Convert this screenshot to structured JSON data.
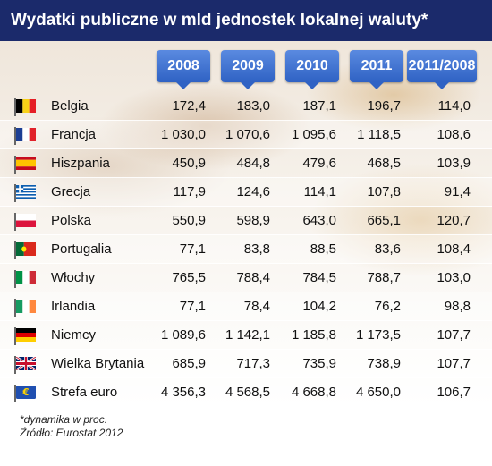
{
  "title": "Wydatki publiczne w mld jednostek lokalnej waluty*",
  "chart_data": {
    "type": "table",
    "title": "Wydatki publiczne w mld jednostek lokalnej waluty*",
    "columns": [
      "2008",
      "2009",
      "2010",
      "2011",
      "2011/2008"
    ],
    "rows": [
      {
        "country": "Belgia",
        "flag": "flag-belgium-icon",
        "values": [
          "172,4",
          "183,0",
          "187,1",
          "196,7",
          "114,0"
        ]
      },
      {
        "country": "Francja",
        "flag": "flag-france-icon",
        "values": [
          "1 030,0",
          "1 070,6",
          "1 095,6",
          "1 118,5",
          "108,6"
        ]
      },
      {
        "country": "Hiszpania",
        "flag": "flag-spain-icon",
        "values": [
          "450,9",
          "484,8",
          "479,6",
          "468,5",
          "103,9"
        ]
      },
      {
        "country": "Grecja",
        "flag": "flag-greece-icon",
        "values": [
          "117,9",
          "124,6",
          "114,1",
          "107,8",
          "91,4"
        ]
      },
      {
        "country": "Polska",
        "flag": "flag-poland-icon",
        "values": [
          "550,9",
          "598,9",
          "643,0",
          "665,1",
          "120,7"
        ]
      },
      {
        "country": "Portugalia",
        "flag": "flag-portugal-icon",
        "values": [
          "77,1",
          "83,8",
          "88,5",
          "83,6",
          "108,4"
        ]
      },
      {
        "country": "Włochy",
        "flag": "flag-italy-icon",
        "values": [
          "765,5",
          "788,4",
          "784,5",
          "788,7",
          "103,0"
        ]
      },
      {
        "country": "Irlandia",
        "flag": "flag-ireland-icon",
        "values": [
          "77,1",
          "78,4",
          "104,2",
          "76,2",
          "98,8"
        ]
      },
      {
        "country": "Niemcy",
        "flag": "flag-germany-icon",
        "values": [
          "1 089,6",
          "1 142,1",
          "1 185,8",
          "1 173,5",
          "107,7"
        ]
      },
      {
        "country": "Wielka Brytania",
        "flag": "flag-uk-icon",
        "values": [
          "685,9",
          "717,3",
          "735,9",
          "738,9",
          "107,7"
        ]
      },
      {
        "country": "Strefa euro",
        "flag": "flag-eu-icon",
        "values": [
          "4 356,3",
          "4 568,5",
          "4 668,8",
          "4 650,0",
          "106,7"
        ]
      }
    ]
  },
  "footnote": "*dynamika w proc.",
  "source": "Źródło: Eurostat 2012",
  "colors": {
    "title_bg": "#1b2a6b",
    "header_bg": "#3f73d2"
  }
}
